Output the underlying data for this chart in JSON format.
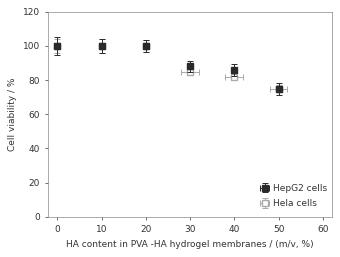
{
  "hepg2_x": [
    0,
    10,
    20,
    30,
    40,
    50
  ],
  "hepg2_y": [
    100,
    100,
    100,
    88,
    86,
    75
  ],
  "hepg2_xerr": [
    0.3,
    0.3,
    0.3,
    0.3,
    0.3,
    0.3
  ],
  "hepg2_yerr": [
    5,
    4,
    3.5,
    3,
    3.5,
    3.5
  ],
  "hela_x": [
    0,
    10,
    20,
    30,
    40,
    50
  ],
  "hela_y": [
    100,
    100,
    100,
    85,
    82,
    75
  ],
  "hela_xerr": [
    0.3,
    0.3,
    0.3,
    2.0,
    2.0,
    2.0
  ],
  "hela_yerr": [
    4,
    4,
    3.5,
    2,
    2,
    2
  ],
  "xlabel": "HA content in PVA -HA hydrogel membranes / (m/v, %)",
  "ylabel": "Cell viability / %",
  "xlim": [
    -2,
    62
  ],
  "ylim": [
    0,
    120
  ],
  "yticks": [
    0,
    20,
    40,
    60,
    80,
    100,
    120
  ],
  "xticks": [
    0,
    10,
    20,
    30,
    40,
    50,
    60
  ],
  "legend_hepg2": "HepG2 cells",
  "legend_hela": "Hela cells",
  "color_hepg2": "#2a2a2a",
  "color_hela": "#aaaaaa",
  "background": "#ffffff"
}
